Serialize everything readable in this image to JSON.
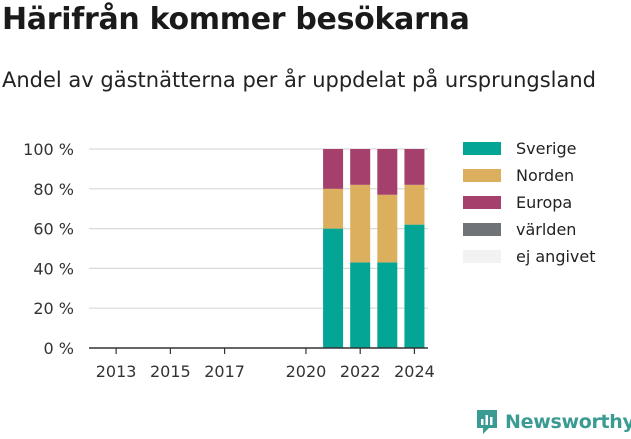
{
  "title": "Härifrån kommer besökarna",
  "subtitle": "Andel av gästnätterna per år uppdelat på ursprungsland",
  "logo_text": "Newsworthy",
  "chart_data": {
    "type": "bar",
    "stacked": true,
    "title": "Härifrån kommer besökarna",
    "subtitle": "Andel av gästnätterna per år uppdelat på ursprungsland",
    "xlabel": "",
    "ylabel": "",
    "x_range": [
      2012,
      2024.5
    ],
    "x_ticks": [
      2013,
      2015,
      2017,
      2020,
      2022,
      2024
    ],
    "ylim": [
      0,
      100
    ],
    "y_ticks": [
      0,
      20,
      40,
      60,
      80,
      100
    ],
    "y_tick_labels": [
      "0 %",
      "20 %",
      "40 %",
      "60 %",
      "80 %",
      "100 %"
    ],
    "grid": true,
    "legend_position": "right",
    "categories": [
      2021,
      2022,
      2023,
      2024
    ],
    "series": [
      {
        "name": "Sverige",
        "color": "#05a595",
        "values": [
          60,
          43,
          43,
          62
        ]
      },
      {
        "name": "Norden",
        "color": "#dcaf5e",
        "values": [
          20,
          39,
          34,
          20
        ]
      },
      {
        "name": "Europa",
        "color": "#a5406c",
        "values": [
          20,
          18,
          23,
          18
        ]
      },
      {
        "name": "världen",
        "color": "#707377",
        "values": [
          0,
          0,
          0,
          0
        ]
      },
      {
        "name": "ej angivet",
        "color": "#f2f2f2",
        "values": [
          0,
          0,
          0,
          0
        ]
      }
    ]
  }
}
